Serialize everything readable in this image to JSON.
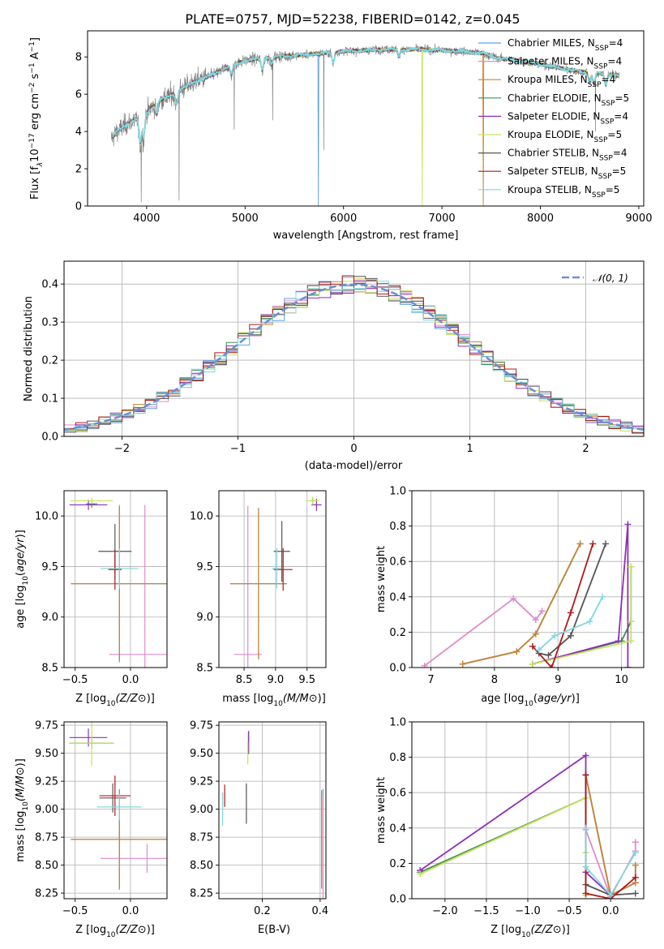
{
  "title": "PLATE=0757, MJD=52238, FIBERID=0142, z=0.045",
  "colors": {
    "Chabrier MILES": "#5fa2dd",
    "Salpeter MILES": "#e08acb",
    "Kroupa MILES": "#c8832f",
    "Chabrier ELODIE": "#3f8f55",
    "Salpeter ELODIE": "#8d2fb5",
    "Kroupa ELODIE": "#c5e35a",
    "Chabrier STELIB": "#555555",
    "Salpeter STELIB": "#b01818",
    "Kroupa STELIB": "#7fd8e0"
  },
  "legend_labels": [
    "Chabrier MILES, N_SSP=4",
    "Salpeter MILES, N_SSP=4",
    "Kroupa MILES, N_SSP=4",
    "Chabrier ELODIE, N_SSP=5",
    "Salpeter ELODIE, N_SSP=4",
    "Kroupa ELODIE, N_SSP=5",
    "Chabrier STELIB, N_SSP=4",
    "Salpeter STELIB, N_SSP=5",
    "Kroupa STELIB, N_SSP=5"
  ],
  "chart_data": [
    {
      "panel": "spectrum",
      "type": "line",
      "xlabel": "wavelength [Angstrom, rest frame]",
      "ylabel_parts": [
        "Flux [f",
        "λ",
        "10",
        "−17",
        " erg cm",
        "−2",
        " s",
        "−1",
        " A",
        "−1",
        "]"
      ],
      "xlim": [
        3400,
        9050
      ],
      "ylim": [
        0,
        9.4
      ],
      "xticks": [
        4000,
        5000,
        6000,
        7000,
        8000,
        9000
      ],
      "yticks": [
        0,
        2,
        4,
        6,
        8
      ],
      "grid": false,
      "legend_position": "upper right",
      "data_range": [
        3640,
        8800
      ],
      "continuum_x": [
        3640,
        3700,
        3800,
        3900,
        4000,
        4100,
        4200,
        4300,
        4400,
        4500,
        4600,
        4700,
        4800,
        4900,
        5000,
        5200,
        5400,
        5600,
        5800,
        6000,
        6200,
        6400,
        6600,
        6800,
        7000,
        7200,
        7400,
        7600,
        7800,
        8000,
        8200,
        8400,
        8600,
        8800
      ],
      "continuum_y": [
        3.6,
        4.0,
        4.4,
        4.7,
        5.0,
        5.6,
        5.8,
        6.1,
        6.4,
        6.7,
        6.9,
        7.1,
        7.4,
        7.6,
        7.8,
        7.95,
        8.05,
        8.1,
        8.2,
        8.3,
        8.35,
        8.4,
        8.4,
        8.4,
        8.35,
        8.3,
        8.2,
        7.9,
        7.8,
        7.6,
        7.4,
        7.2,
        7.1,
        7.0
      ],
      "absorption_lines": [
        {
          "x": 3934,
          "depth": 1.6
        },
        {
          "x": 3969,
          "depth": 1.4
        },
        {
          "x": 4102,
          "depth": 0.7
        },
        {
          "x": 4305,
          "depth": 0.7
        },
        {
          "x": 4861,
          "depth": 0.5
        },
        {
          "x": 5175,
          "depth": 0.7
        },
        {
          "x": 5270,
          "depth": 0.4
        },
        {
          "x": 5895,
          "depth": 0.6
        },
        {
          "x": 6563,
          "depth": 0.4
        },
        {
          "x": 8500,
          "depth": 0.5
        },
        {
          "x": 8544,
          "depth": 0.6
        },
        {
          "x": 8664,
          "depth": 0.6
        }
      ],
      "data_spikes_down": [
        {
          "x": 3945,
          "y": 0.2
        },
        {
          "x": 4330,
          "y": 0.3
        },
        {
          "x": 4890,
          "y": 4.1
        },
        {
          "x": 5280,
          "y": 4.6
        },
        {
          "x": 5800,
          "y": 3.0
        },
        {
          "x": 8560,
          "y": 4.0
        }
      ],
      "model_drops": [
        {
          "x": 5745,
          "series": "Chabrier MILES"
        },
        {
          "x": 6800,
          "series": "Kroupa ELODIE"
        },
        {
          "x": 7420,
          "series": "Kroupa MILES"
        }
      ]
    },
    {
      "panel": "residual_histogram",
      "type": "step",
      "xlabel": "(data-model)/error",
      "ylabel": "Normed distribution",
      "xlim": [
        -2.5,
        2.5
      ],
      "ylim": [
        0,
        0.46
      ],
      "xticks": [
        -2,
        -1,
        0,
        1,
        2
      ],
      "yticks": [
        0.0,
        0.1,
        0.2,
        0.3,
        0.4
      ],
      "grid": true,
      "bin_width": 0.1,
      "reference": {
        "label": "𝒩(0, 1)",
        "type": "gaussian",
        "mu": 0,
        "sigma": 1,
        "color": "#6a8fd6"
      }
    },
    {
      "panel": "age_vs_Z",
      "type": "errorbar",
      "xlabel_parts": [
        "Z [log",
        "10",
        "(Z/Z",
        "⊙",
        ")]"
      ],
      "ylabel_parts": [
        "age  [log",
        "10",
        "(",
        "age/yr",
        ")]"
      ],
      "xlim": [
        -0.6,
        0.33
      ],
      "ylim": [
        8.5,
        10.25
      ],
      "xticks": [
        -0.5,
        0.0
      ],
      "yticks": [
        8.5,
        9.0,
        9.5,
        10.0
      ],
      "grid": true,
      "points": [
        {
          "series": "Chabrier MILES",
          "x": -0.1,
          "xerr": 0.43,
          "y": 9.33,
          "yerr": 0.78
        },
        {
          "series": "Salpeter MILES",
          "x": 0.13,
          "xerr": 0.32,
          "y": 8.63,
          "yerr": 1.48
        },
        {
          "series": "Kroupa MILES",
          "x": -0.1,
          "xerr": 0.44,
          "y": 9.33,
          "yerr": 0.76
        },
        {
          "series": "Chabrier ELODIE",
          "x": -0.35,
          "xerr": 0.05,
          "y": 10.12,
          "yerr": 0.04
        },
        {
          "series": "Salpeter ELODIE",
          "x": -0.38,
          "xerr": 0.17,
          "y": 10.11,
          "yerr": 0.05
        },
        {
          "series": "Kroupa ELODIE",
          "x": -0.35,
          "xerr": 0.19,
          "y": 10.15,
          "yerr": 0.03
        },
        {
          "series": "Chabrier STELIB",
          "x": -0.14,
          "xerr": 0.15,
          "y": 9.65,
          "yerr": 0.27
        },
        {
          "series": "Salpeter STELIB",
          "x": -0.14,
          "xerr": 0.06,
          "y": 9.47,
          "yerr": 0.2
        },
        {
          "series": "Kroupa STELIB",
          "x": -0.1,
          "xerr": 0.17,
          "y": 9.48,
          "yerr": 0.2
        }
      ]
    },
    {
      "panel": "age_vs_mass",
      "type": "errorbar",
      "xlabel_parts": [
        "mass [log",
        "10",
        "(M/M",
        "⊙",
        ")]"
      ],
      "xlim": [
        8.1,
        9.8
      ],
      "ylim": [
        8.5,
        10.25
      ],
      "xticks": [
        8.5,
        9.0,
        9.5
      ],
      "yticks": [
        8.5,
        9.0,
        9.5,
        10.0
      ],
      "grid": true,
      "points": [
        {
          "series": "Chabrier MILES",
          "x": 8.73,
          "xerr": 0.45,
          "y": 9.33,
          "yerr": 0.75
        },
        {
          "series": "Salpeter MILES",
          "x": 8.56,
          "xerr": 0.22,
          "y": 8.63,
          "yerr": 1.47
        },
        {
          "series": "Kroupa MILES",
          "x": 8.73,
          "xerr": 0.45,
          "y": 9.33,
          "yerr": 0.75
        },
        {
          "series": "Chabrier ELODIE",
          "x": 9.59,
          "xerr": 0.04,
          "y": 10.15,
          "yerr": 0.04
        },
        {
          "series": "Salpeter ELODIE",
          "x": 9.65,
          "xerr": 0.08,
          "y": 10.11,
          "yerr": 0.06
        },
        {
          "series": "Kroupa ELODIE",
          "x": 9.59,
          "xerr": 0.1,
          "y": 10.15,
          "yerr": 0.04
        },
        {
          "series": "Chabrier STELIB",
          "x": 9.1,
          "xerr": 0.13,
          "y": 9.65,
          "yerr": 0.3
        },
        {
          "series": "Salpeter STELIB",
          "x": 9.12,
          "xerr": 0.15,
          "y": 9.47,
          "yerr": 0.21
        },
        {
          "series": "Kroupa STELIB",
          "x": 9.02,
          "xerr": 0.08,
          "y": 9.48,
          "yerr": 0.2
        }
      ]
    },
    {
      "panel": "mass_weight_vs_age",
      "type": "line",
      "xlabel_parts": [
        "age  [log",
        "10",
        "(",
        "age/yr",
        ")]"
      ],
      "ylabel": "mass weight",
      "xlim": [
        6.7,
        10.35
      ],
      "ylim": [
        0,
        1.0
      ],
      "xticks": [
        7,
        8,
        9,
        10
      ],
      "yticks": [
        0.0,
        0.2,
        0.4,
        0.6,
        0.8,
        1.0
      ],
      "grid": true,
      "series": [
        {
          "name": "Chabrier MILES",
          "x": [
            7.5,
            8.35,
            8.65,
            9.35
          ],
          "y": [
            0.02,
            0.09,
            0.19,
            0.7
          ]
        },
        {
          "name": "Salpeter MILES",
          "x": [
            6.9,
            8.3,
            8.65,
            8.75
          ],
          "y": [
            0.01,
            0.39,
            0.27,
            0.32
          ]
        },
        {
          "name": "Kroupa MILES",
          "x": [
            7.5,
            8.35,
            8.65,
            9.35
          ],
          "y": [
            0.02,
            0.09,
            0.19,
            0.7
          ]
        },
        {
          "name": "Chabrier ELODIE",
          "x": [
            8.6,
            10.0,
            10.15,
            10.15
          ],
          "y": [
            0.02,
            0.15,
            0.26,
            0.57
          ]
        },
        {
          "name": "Salpeter ELODIE",
          "x": [
            8.6,
            9.95,
            10.1,
            10.1
          ],
          "y": [
            0.02,
            0.15,
            0.81,
            0.0
          ]
        },
        {
          "name": "Kroupa ELODIE",
          "x": [
            8.6,
            10.15,
            10.15,
            10.15
          ],
          "y": [
            0.02,
            0.15,
            0.26,
            0.57
          ]
        },
        {
          "name": "Chabrier STELIB",
          "x": [
            8.7,
            8.85,
            9.2,
            9.75
          ],
          "y": [
            0.08,
            0.07,
            0.18,
            0.7
          ]
        },
        {
          "name": "Salpeter STELIB",
          "x": [
            8.6,
            8.9,
            9.2,
            9.55
          ],
          "y": [
            0.12,
            0.0,
            0.31,
            0.7
          ]
        },
        {
          "name": "Kroupa STELIB",
          "x": [
            8.7,
            8.95,
            9.5,
            9.7
          ],
          "y": [
            0.1,
            0.18,
            0.26,
            0.4
          ]
        }
      ]
    },
    {
      "panel": "mass_vs_Z",
      "type": "errorbar",
      "xlabel_parts": [
        "Z [log",
        "10",
        "(Z/Z",
        "⊙",
        ")]"
      ],
      "ylabel_parts": [
        "mass [log",
        "10",
        "(M/M",
        "⊙",
        ")]"
      ],
      "xlim": [
        -0.6,
        0.33
      ],
      "ylim": [
        8.2,
        9.78
      ],
      "xticks": [
        -0.5,
        0.0
      ],
      "yticks": [
        8.25,
        8.5,
        8.75,
        9.0,
        9.25,
        9.5,
        9.75
      ],
      "grid": true,
      "points": [
        {
          "series": "Chabrier MILES",
          "x": -0.1,
          "xerr": 0.43,
          "y": 8.73,
          "yerr": 0.45
        },
        {
          "series": "Salpeter MILES",
          "x": 0.15,
          "xerr": 0.42,
          "y": 8.56,
          "yerr": 0.13
        },
        {
          "series": "Kroupa MILES",
          "x": -0.1,
          "xerr": 0.44,
          "y": 8.73,
          "yerr": 0.44
        },
        {
          "series": "Chabrier ELODIE",
          "x": -0.35,
          "xerr": 0.2,
          "y": 9.59,
          "yerr": 0.04
        },
        {
          "series": "Salpeter ELODIE",
          "x": -0.38,
          "xerr": 0.17,
          "y": 9.64,
          "yerr": 0.08
        },
        {
          "series": "Kroupa ELODIE",
          "x": -0.35,
          "xerr": 0.2,
          "y": 9.59,
          "yerr": 0.2
        },
        {
          "series": "Chabrier STELIB",
          "x": -0.16,
          "xerr": 0.12,
          "y": 9.1,
          "yerr": 0.13
        },
        {
          "series": "Salpeter STELIB",
          "x": -0.14,
          "xerr": 0.14,
          "y": 9.12,
          "yerr": 0.18
        },
        {
          "series": "Kroupa STELIB",
          "x": -0.1,
          "xerr": 0.2,
          "y": 9.02,
          "yerr": 0.12
        }
      ]
    },
    {
      "panel": "mass_vs_EBV",
      "type": "errorbar",
      "xlabel": "E(B-V)",
      "xlim": [
        0.05,
        0.42
      ],
      "ylim": [
        8.2,
        9.78
      ],
      "xticks": [
        0.2,
        0.4
      ],
      "yticks": [
        8.25,
        8.5,
        8.75,
        9.0,
        9.25,
        9.5,
        9.75
      ],
      "grid": true,
      "points": [
        {
          "series": "Chabrier MILES",
          "x": 0.41,
          "xerr": 0,
          "y": 8.73,
          "yerr": 0.45
        },
        {
          "series": "Salpeter MILES",
          "x": 0.41,
          "xerr": 0,
          "y": 8.56,
          "yerr": 0.55
        },
        {
          "series": "Kroupa MILES",
          "x": 0.405,
          "xerr": 0,
          "y": 8.73,
          "yerr": 0.44
        },
        {
          "series": "Chabrier ELODIE",
          "x": 0.152,
          "xerr": 0,
          "y": 9.59,
          "yerr": 0.1
        },
        {
          "series": "Salpeter ELODIE",
          "x": 0.153,
          "xerr": 0,
          "y": 9.6,
          "yerr": 0.1
        },
        {
          "series": "Kroupa ELODIE",
          "x": 0.15,
          "xerr": 0,
          "y": 9.5,
          "yerr": 0.1
        },
        {
          "series": "Chabrier STELIB",
          "x": 0.145,
          "xerr": 0,
          "y": 9.05,
          "yerr": 0.18
        },
        {
          "series": "Salpeter STELIB",
          "x": 0.07,
          "xerr": 0,
          "y": 9.12,
          "yerr": 0.1
        },
        {
          "series": "Kroupa STELIB",
          "x": 0.063,
          "xerr": 0,
          "y": 9.0,
          "yerr": 0.15
        }
      ]
    },
    {
      "panel": "mass_weight_vs_Z",
      "type": "line",
      "xlabel_parts": [
        "Z [log",
        "10",
        "(Z/Z",
        "⊙",
        ")]"
      ],
      "ylabel": "mass weight",
      "xlim": [
        -2.4,
        0.4
      ],
      "ylim": [
        0,
        1.0
      ],
      "xticks": [
        -2.0,
        -1.5,
        -1.0,
        -0.5,
        0.0
      ],
      "yticks": [
        0.0,
        0.2,
        0.4,
        0.6,
        0.8,
        1.0
      ],
      "grid": true,
      "series": [
        {
          "name": "Chabrier MILES",
          "x": [
            -0.3,
            0.0,
            0.3,
            0.3
          ],
          "y": [
            0.7,
            0.02,
            0.09,
            0.19
          ]
        },
        {
          "name": "Salpeter MILES",
          "x": [
            -0.3,
            0.0,
            0.3,
            0.3
          ],
          "y": [
            0.39,
            0.01,
            0.27,
            0.32
          ]
        },
        {
          "name": "Kroupa MILES",
          "x": [
            -0.3,
            0.0,
            0.3,
            0.3
          ],
          "y": [
            0.7,
            0.02,
            0.09,
            0.19
          ]
        },
        {
          "name": "Chabrier ELODIE",
          "x": [
            -2.3,
            -0.3,
            -0.3,
            -0.3
          ],
          "y": [
            0.15,
            0.57,
            0.26,
            0.02
          ]
        },
        {
          "name": "Salpeter ELODIE",
          "x": [
            -2.3,
            -0.3,
            -0.3,
            0.0
          ],
          "y": [
            0.16,
            0.81,
            0.15,
            0.02
          ]
        },
        {
          "name": "Kroupa ELODIE",
          "x": [
            -2.3,
            -0.3,
            -0.3,
            -0.3
          ],
          "y": [
            0.14,
            0.57,
            0.26,
            0.02
          ]
        },
        {
          "name": "Chabrier STELIB",
          "x": [
            -0.3,
            -0.3,
            0.0,
            0.3
          ],
          "y": [
            0.7,
            0.08,
            0.02,
            0.03
          ]
        },
        {
          "name": "Salpeter STELIB",
          "x": [
            -0.3,
            -0.3,
            0.0,
            0.3
          ],
          "y": [
            0.7,
            0.03,
            0.0,
            0.12
          ]
        },
        {
          "name": "Kroupa STELIB",
          "x": [
            -0.3,
            -0.3,
            0.0,
            0.3
          ],
          "y": [
            0.4,
            0.18,
            0.02,
            0.26
          ]
        }
      ]
    }
  ]
}
